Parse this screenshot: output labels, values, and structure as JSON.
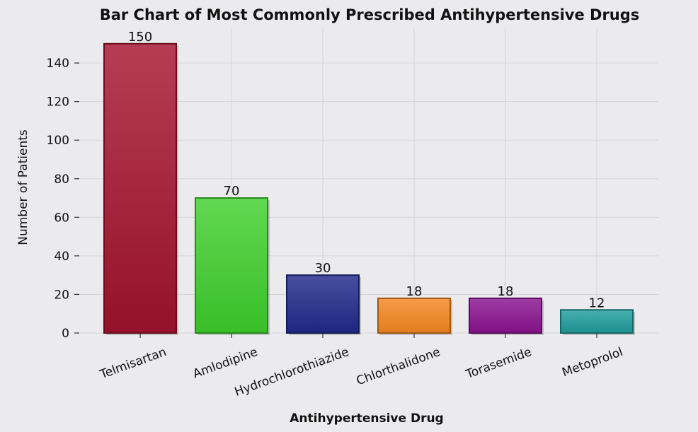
{
  "chart_data": {
    "type": "bar",
    "title": "Bar Chart of Most Commonly Prescribed Antihypertensive Drugs",
    "xlabel": "Antihypertensive Drug",
    "ylabel": "Number of Patients",
    "categories": [
      "Telmisartan",
      "Amlodipine",
      "Hydrochlorothiazide",
      "Chlorthalidone",
      "Torasemide",
      "Metoprolol"
    ],
    "values": [
      150,
      70,
      30,
      18,
      18,
      12
    ],
    "data_labels": [
      "150",
      "70",
      "30",
      "18",
      "18",
      "12"
    ],
    "colors": [
      "#a3122e",
      "#3ecf2c",
      "#1f2a8a",
      "#f5871f",
      "#8a1190",
      "#1f9c9c"
    ],
    "ylim": [
      0,
      158
    ],
    "yticks": [
      0,
      20,
      40,
      60,
      80,
      100,
      120,
      140
    ],
    "ytick_labels": [
      "0",
      "20",
      "40",
      "60",
      "80",
      "100",
      "120",
      "140"
    ],
    "grid": true,
    "legend": false
  }
}
